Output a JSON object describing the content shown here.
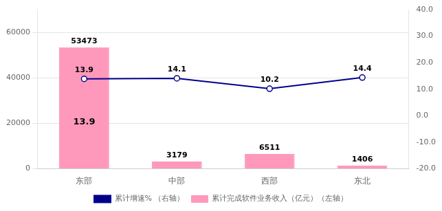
{
  "chart_data": {
    "type": "bar",
    "categories": [
      "东部",
      "中部",
      "西部",
      "东北"
    ],
    "series": [
      {
        "name": "累计完成软件业务收入（亿元）（左轴）",
        "type": "bar",
        "color": "#FF99BB",
        "values": [
          53473,
          3179,
          6511,
          1406
        ]
      },
      {
        "name": "累计增速% （右轴）",
        "type": "line",
        "color": "#00008B",
        "marker": "o",
        "axis": "y2",
        "values": [
          13.9,
          14.1,
          10.2,
          14.4
        ]
      }
    ],
    "ylim": [
      0,
      70000
    ],
    "yticks": [
      0,
      20000,
      40000,
      60000
    ],
    "y2lim": [
      -20.0,
      40.0
    ],
    "y2ticks": [
      {
        "value": -20.0,
        "label": "-20.0"
      },
      {
        "value": -10.0,
        "label": "-10.0"
      },
      {
        "value": 0.0,
        "label": "0.0"
      },
      {
        "value": 10.0,
        "label": "10.0"
      },
      {
        "value": 20.0,
        "label": "20.0"
      },
      {
        "value": 30.0,
        "label": "30.0"
      },
      {
        "value": 40.0,
        "label": "40.0"
      }
    ],
    "grid": true,
    "legend": "bottom",
    "data_labels": true,
    "annotations": [
      {
        "text": "13.9",
        "x": "东部"
      }
    ]
  }
}
